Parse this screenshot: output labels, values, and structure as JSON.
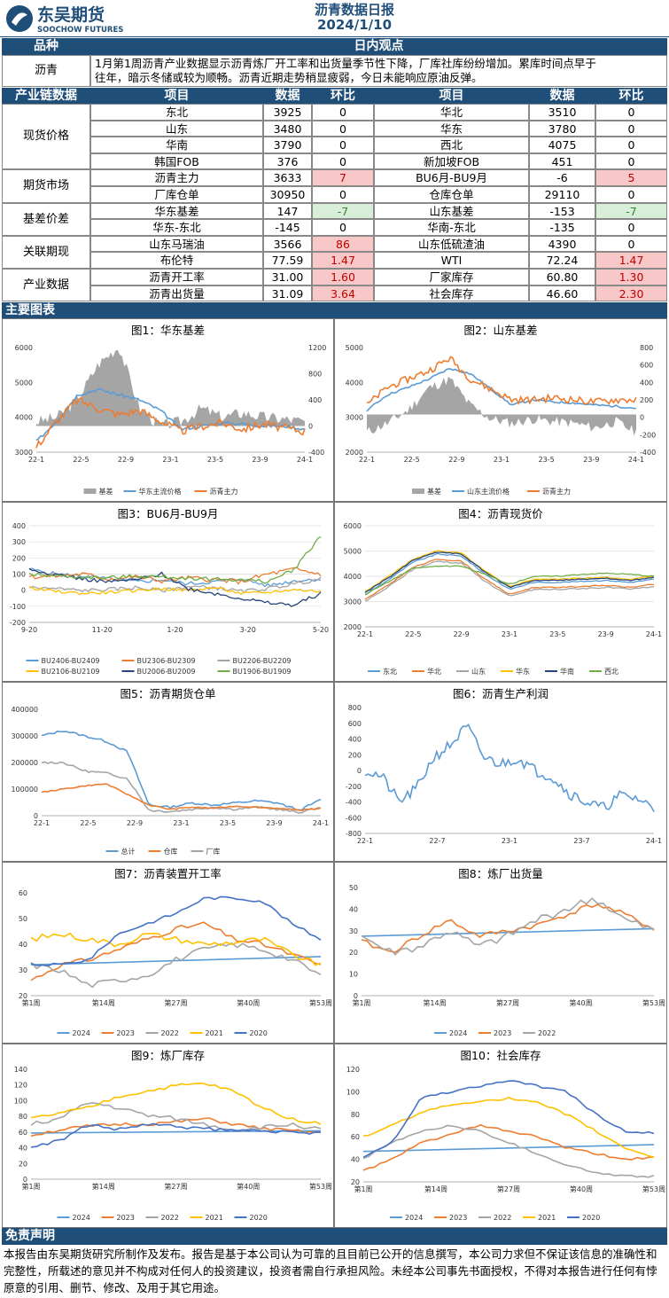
{
  "header": {
    "brand_cn": "东吴期货",
    "brand_en": "SOOCHOW FUTURES",
    "title": "沥青数据日报",
    "date": "2024/1/10"
  },
  "view": {
    "col1": "品种",
    "col2": "日内观点",
    "product": "沥青",
    "text1": "1月第1周沥青产业数据显示沥青炼厂开工率和出货量季节性下降，厂库社库纷纷增加。累库时间点早于",
    "text2": "往年，暗示冬储或较为顺畅。沥青近期走势稍显疲弱，今日未能响应原油反弹。"
  },
  "table": {
    "headers": [
      "产业链数据",
      "项目",
      "数据",
      "环比",
      "项目",
      "数据",
      "环比"
    ],
    "groups": [
      "现货价格",
      "期货市场",
      "基差价差",
      "关联期现",
      "产业数据"
    ],
    "rows": [
      [
        "东北",
        "3925",
        "0",
        "华北",
        "3510",
        "0"
      ],
      [
        "山东",
        "3480",
        "0",
        "华东",
        "3780",
        "0"
      ],
      [
        "华南",
        "3790",
        "0",
        "西北",
        "4075",
        "0"
      ],
      [
        "韩国FOB",
        "376",
        "0",
        "新加坡FOB",
        "451",
        "0"
      ],
      [
        "沥青主力",
        "3633",
        "7",
        "BU6月-BU9月",
        "-6",
        "5"
      ],
      [
        "厂库仓单",
        "30950",
        "0",
        "仓库仓单",
        "29110",
        "0"
      ],
      [
        "华东基差",
        "147",
        "-7",
        "山东基差",
        "-153",
        "-7"
      ],
      [
        "华东-东北",
        "-145",
        "0",
        "华南-东北",
        "-135",
        "0"
      ],
      [
        "山东马瑞油",
        "3566",
        "86",
        "山东低硫渣油",
        "4390",
        "0"
      ],
      [
        "布伦特",
        "77.59",
        "1.47",
        "WTI",
        "72.24",
        "1.47"
      ],
      [
        "沥青开工率",
        "31.00",
        "1.60",
        "厂家库存",
        "60.80",
        "1.30"
      ],
      [
        "沥青出货量",
        "31.09",
        "3.64",
        "社会库存",
        "46.60",
        "2.30"
      ]
    ]
  },
  "charts_bar": "主要图表",
  "chart_titles": [
    "图1：华东基差",
    "图2：山东基差",
    "图3：BU6月-BU9月",
    "图4：沥青现货价",
    "图5：沥青期货仓单",
    "图6：沥青生产利润",
    "图7：沥青装置开工率",
    "图8：炼厂出货量",
    "图9：炼厂库存",
    "图10：社会库存"
  ],
  "chart_data": [
    {
      "type": "line",
      "title": "图1：华东基差",
      "x": [
        "22-1",
        "22-5",
        "22-9",
        "23-1",
        "23-5",
        "23-9",
        "24-1"
      ],
      "ylim": [
        3000,
        6000
      ],
      "y2lim": [
        -400,
        1200
      ],
      "series": [
        {
          "name": "基差",
          "values": [
            150,
            250,
            900,
            0,
            100,
            150,
            100
          ]
        },
        {
          "name": "华东主流价格",
          "values": [
            3500,
            4900,
            4700,
            3600,
            3800,
            3700,
            3700
          ]
        },
        {
          "name": "沥青主力",
          "values": [
            3400,
            4600,
            4100,
            3600,
            3750,
            3650,
            3650
          ]
        }
      ]
    },
    {
      "type": "line",
      "title": "图2：山东基差",
      "x": [
        "22-1",
        "22-5",
        "22-9",
        "23-1",
        "23-5",
        "23-9",
        "24-1"
      ],
      "ylim": [
        2000,
        5000
      ],
      "y2lim": [
        -400,
        800
      ],
      "series": [
        {
          "name": "基差",
          "values": [
            -200,
            300,
            600,
            0,
            -100,
            -150,
            -200
          ]
        },
        {
          "name": "山东主流价格",
          "values": [
            3200,
            4300,
            4700,
            3500,
            3700,
            3600,
            3500
          ]
        },
        {
          "name": "沥青主力",
          "values": [
            3400,
            4400,
            4300,
            3700,
            3800,
            3700,
            3650
          ]
        }
      ]
    },
    {
      "type": "line",
      "title": "图3：BU6月-BU9月",
      "x": [
        "9-20",
        "11-20",
        "1-20",
        "3-20",
        "5-20"
      ],
      "ylim": [
        -200,
        400
      ],
      "series": [
        {
          "name": "BU2406-BU2409"
        },
        {
          "name": "BU2306-BU2309"
        },
        {
          "name": "BU2206-BU2209"
        },
        {
          "name": "BU2106-BU2109"
        },
        {
          "name": "BU2006-BU2009"
        },
        {
          "name": "BU1906-BU1909"
        }
      ]
    },
    {
      "type": "line",
      "title": "图4：沥青现货价",
      "x": [
        "22-1",
        "22-5",
        "22-9",
        "23-1",
        "23-5",
        "23-9",
        "24-1"
      ],
      "ylim": [
        2000,
        6000
      ],
      "series": [
        {
          "name": "东北"
        },
        {
          "name": "华北"
        },
        {
          "name": "山东"
        },
        {
          "name": "华东"
        },
        {
          "name": "华南"
        },
        {
          "name": "西北"
        }
      ]
    },
    {
      "type": "line",
      "title": "图5：沥青期货仓单",
      "x": [
        "22-1",
        "22-5",
        "22-9",
        "23-1",
        "23-5",
        "23-9",
        "24-1"
      ],
      "ylim": [
        0,
        400000
      ],
      "series": [
        {
          "name": "总计"
        },
        {
          "name": "仓库"
        },
        {
          "name": "厂库"
        }
      ]
    },
    {
      "type": "line",
      "title": "图6：沥青生产利润",
      "x": [
        "22-1",
        "22-7",
        "23-1",
        "23-7",
        "24-1"
      ],
      "ylim": [
        -800,
        800
      ],
      "series": [
        {
          "name": "利润"
        }
      ]
    },
    {
      "type": "line",
      "title": "图7：沥青装置开工率",
      "x": [
        "第1周",
        "第14周",
        "第27周",
        "第40周",
        "第53周"
      ],
      "ylim": [
        20,
        60
      ],
      "series": [
        {
          "name": "2024"
        },
        {
          "name": "2023"
        },
        {
          "name": "2022"
        },
        {
          "name": "2021"
        },
        {
          "name": "2020"
        }
      ]
    },
    {
      "type": "line",
      "title": "图8：炼厂出货量",
      "x": [
        "第1周",
        "第14周",
        "第27周",
        "第40周",
        "第53周"
      ],
      "ylim": [
        0,
        50
      ],
      "series": [
        {
          "name": "2024"
        },
        {
          "name": "2023"
        },
        {
          "name": "2022"
        }
      ]
    },
    {
      "type": "line",
      "title": "图9：炼厂库存",
      "x": [
        "第1周",
        "第14周",
        "第27周",
        "第40周",
        "第53周"
      ],
      "ylim": [
        0,
        140
      ],
      "series": [
        {
          "name": "2024"
        },
        {
          "name": "2023"
        },
        {
          "name": "2022"
        },
        {
          "name": "2021"
        },
        {
          "name": "2020"
        }
      ]
    },
    {
      "type": "line",
      "title": "图10：社会库存",
      "x": [
        "第1周",
        "第14周",
        "第27周",
        "第40周",
        "第53周"
      ],
      "ylim": [
        0,
        120
      ],
      "series": [
        {
          "name": "2024"
        },
        {
          "name": "2023"
        },
        {
          "name": "2022"
        },
        {
          "name": "2021"
        },
        {
          "name": "2020"
        }
      ]
    }
  ],
  "axes": {
    "c1l": [
      "6000",
      "5000",
      "4000",
      "3000"
    ],
    "c1r": [
      "1200",
      "800",
      "400",
      "0",
      "-400"
    ],
    "c2l": [
      "5000",
      "4000",
      "3000",
      "2000"
    ],
    "c2r": [
      "800",
      "600",
      "400",
      "200",
      "0",
      "-200",
      "-400"
    ],
    "c3": [
      "400",
      "300",
      "200",
      "100",
      "0",
      "-100",
      "-200"
    ],
    "c4": [
      "6000",
      "5000",
      "4000",
      "3000",
      "2000"
    ],
    "c5": [
      "400000",
      "300000",
      "200000",
      "100000",
      "0"
    ],
    "c6": [
      "800",
      "600",
      "400",
      "200",
      "0",
      "-200",
      "-400",
      "-600",
      "-800"
    ],
    "c7": [
      "60",
      "50",
      "40",
      "30",
      "20"
    ],
    "c8": [
      "50",
      "40",
      "30",
      "20",
      "10",
      "0"
    ],
    "c9": [
      "140",
      "120",
      "100",
      "80",
      "60",
      "40",
      "20",
      "0"
    ],
    "c10": [
      "120",
      "100",
      "80",
      "60",
      "40",
      "20"
    ]
  },
  "colors": {
    "navy": "#1f4e79",
    "blue": "#5b9bd5",
    "orange": "#ed7d31",
    "gray": "#a5a5a5",
    "yellow": "#ffc000",
    "dblue": "#4472c4",
    "green": "#70ad47",
    "darkblue": "#264478"
  },
  "disclaimer": {
    "title": "免责声明",
    "text": "本报告由东吴期货研究所制作及发布。报告是基于本公司认为可靠的且目前已公开的信息撰写，本公司力求但不保证该信息的准确性和完整性，所载述的意见并不构成对任何人的投资建议，投资者需自行承担风险。未经本公司事先书面授权，不得对本报告进行任何有悖原意的引用、删节、修改、及用于其它用途。"
  }
}
